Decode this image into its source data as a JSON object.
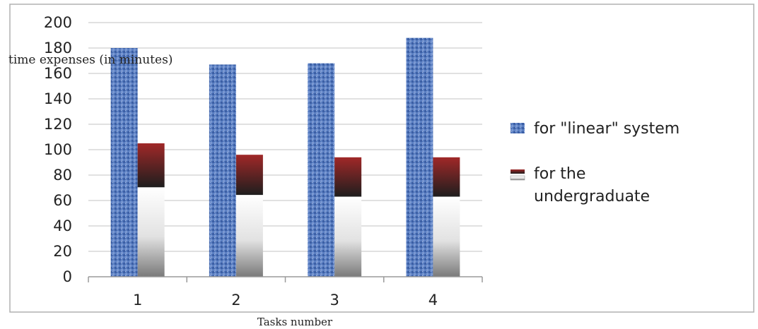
{
  "chart_data": {
    "type": "bar",
    "categories": [
      "1",
      "2",
      "3",
      "4"
    ],
    "series": [
      {
        "name": "for \"linear\" system",
        "values": [
          180,
          167,
          168,
          188
        ],
        "color": "#4a6fb5"
      },
      {
        "name": "for the undergraduate",
        "values": [
          105,
          96,
          94,
          94
        ],
        "color": "#8b1a1a"
      }
    ],
    "ylim": [
      0,
      200
    ],
    "yticks": [
      "0",
      "20",
      "40",
      "60",
      "80",
      "100",
      "120",
      "140",
      "160",
      "180",
      "200"
    ],
    "ylabel": "time expenses (in minutes)",
    "xlabel": "Tasks number",
    "legend": {
      "position": "right",
      "series2_line1": "for the",
      "series2_line2": "undergraduate"
    },
    "grid": true
  }
}
